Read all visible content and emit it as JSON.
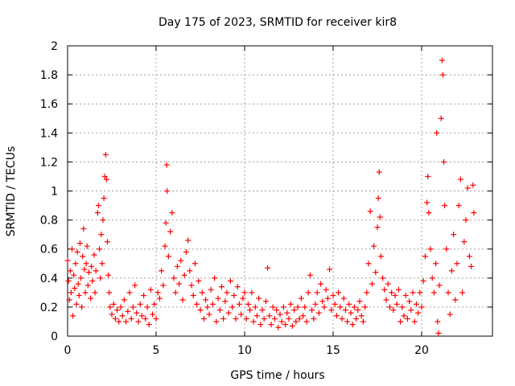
{
  "chart_data": {
    "type": "scatter",
    "title": "Day 175 of 2023, SRMTID for receiver kir8",
    "xlabel": "GPS time / hours",
    "ylabel": "SRMTID / TECUs",
    "xlim": [
      0,
      24
    ],
    "ylim": [
      0,
      2
    ],
    "xticks": [
      0,
      5,
      10,
      15,
      20
    ],
    "xtick_labels": [
      "0",
      "5",
      "10",
      "15",
      "20"
    ],
    "yticks": [
      0,
      0.2,
      0.4,
      0.6,
      0.8,
      1,
      1.2,
      1.4,
      1.6,
      1.8,
      2
    ],
    "ytick_labels": [
      "0",
      "0.2",
      "0.4",
      "0.6",
      "0.8",
      "1",
      "1.2",
      "1.4",
      "1.6",
      "1.8",
      "2"
    ],
    "grid": true,
    "marker": "+",
    "marker_color": "#ff0000",
    "series": [
      {
        "name": "SRMTID",
        "points": [
          [
            0.0,
            0.52
          ],
          [
            0.05,
            0.38
          ],
          [
            0.1,
            0.25
          ],
          [
            0.15,
            0.45
          ],
          [
            0.2,
            0.3
          ],
          [
            0.25,
            0.6
          ],
          [
            0.3,
            0.14
          ],
          [
            0.35,
            0.42
          ],
          [
            0.4,
            0.33
          ],
          [
            0.45,
            0.5
          ],
          [
            0.5,
            0.22
          ],
          [
            0.55,
            0.58
          ],
          [
            0.6,
            0.36
          ],
          [
            0.65,
            0.28
          ],
          [
            0.7,
            0.64
          ],
          [
            0.75,
            0.4
          ],
          [
            0.8,
            0.2
          ],
          [
            0.85,
            0.55
          ],
          [
            0.9,
            0.74
          ],
          [
            0.95,
            0.46
          ],
          [
            1.0,
            0.3
          ],
          [
            1.05,
            0.5
          ],
          [
            1.1,
            0.62
          ],
          [
            1.15,
            0.35
          ],
          [
            1.2,
            0.44
          ],
          [
            1.3,
            0.26
          ],
          [
            1.35,
            0.48
          ],
          [
            1.4,
            0.38
          ],
          [
            1.5,
            0.56
          ],
          [
            1.55,
            0.3
          ],
          [
            1.6,
            0.45
          ],
          [
            1.7,
            0.85
          ],
          [
            1.75,
            0.9
          ],
          [
            1.8,
            0.6
          ],
          [
            1.85,
            0.4
          ],
          [
            1.9,
            0.7
          ],
          [
            1.95,
            0.5
          ],
          [
            2.0,
            0.8
          ],
          [
            2.05,
            0.95
          ],
          [
            2.1,
            1.1
          ],
          [
            2.15,
            1.25
          ],
          [
            2.2,
            1.08
          ],
          [
            2.25,
            0.65
          ],
          [
            2.3,
            0.42
          ],
          [
            2.35,
            0.3
          ],
          [
            2.4,
            0.2
          ],
          [
            2.5,
            0.15
          ],
          [
            2.6,
            0.22
          ],
          [
            2.7,
            0.12
          ],
          [
            2.8,
            0.18
          ],
          [
            2.9,
            0.1
          ],
          [
            3.0,
            0.2
          ],
          [
            3.1,
            0.14
          ],
          [
            3.2,
            0.25
          ],
          [
            3.3,
            0.1
          ],
          [
            3.4,
            0.17
          ],
          [
            3.5,
            0.3
          ],
          [
            3.6,
            0.12
          ],
          [
            3.7,
            0.2
          ],
          [
            3.8,
            0.35
          ],
          [
            3.9,
            0.16
          ],
          [
            4.0,
            0.1
          ],
          [
            4.1,
            0.22
          ],
          [
            4.2,
            0.14
          ],
          [
            4.3,
            0.28
          ],
          [
            4.4,
            0.12
          ],
          [
            4.5,
            0.2
          ],
          [
            4.6,
            0.08
          ],
          [
            4.7,
            0.32
          ],
          [
            4.8,
            0.15
          ],
          [
            4.9,
            0.22
          ],
          [
            5.0,
            0.12
          ],
          [
            5.1,
            0.3
          ],
          [
            5.2,
            0.26
          ],
          [
            5.3,
            0.45
          ],
          [
            5.4,
            0.35
          ],
          [
            5.5,
            0.62
          ],
          [
            5.55,
            0.78
          ],
          [
            5.6,
            1.18
          ],
          [
            5.62,
            1.0
          ],
          [
            5.7,
            0.55
          ],
          [
            5.8,
            0.72
          ],
          [
            5.9,
            0.85
          ],
          [
            6.0,
            0.4
          ],
          [
            6.1,
            0.3
          ],
          [
            6.2,
            0.48
          ],
          [
            6.3,
            0.36
          ],
          [
            6.4,
            0.52
          ],
          [
            6.5,
            0.25
          ],
          [
            6.6,
            0.42
          ],
          [
            6.7,
            0.58
          ],
          [
            6.8,
            0.66
          ],
          [
            6.9,
            0.45
          ],
          [
            7.0,
            0.35
          ],
          [
            7.1,
            0.28
          ],
          [
            7.2,
            0.5
          ],
          [
            7.3,
            0.22
          ],
          [
            7.4,
            0.38
          ],
          [
            7.5,
            0.18
          ],
          [
            7.6,
            0.3
          ],
          [
            7.7,
            0.12
          ],
          [
            7.8,
            0.25
          ],
          [
            7.9,
            0.2
          ],
          [
            8.0,
            0.15
          ],
          [
            8.1,
            0.32
          ],
          [
            8.2,
            0.22
          ],
          [
            8.3,
            0.4
          ],
          [
            8.4,
            0.1
          ],
          [
            8.5,
            0.26
          ],
          [
            8.6,
            0.18
          ],
          [
            8.7,
            0.34
          ],
          [
            8.8,
            0.12
          ],
          [
            8.9,
            0.24
          ],
          [
            9.0,
            0.3
          ],
          [
            9.1,
            0.16
          ],
          [
            9.2,
            0.38
          ],
          [
            9.3,
            0.2
          ],
          [
            9.4,
            0.28
          ],
          [
            9.5,
            0.12
          ],
          [
            9.6,
            0.34
          ],
          [
            9.7,
            0.22
          ],
          [
            9.8,
            0.15
          ],
          [
            9.9,
            0.26
          ],
          [
            10.0,
            0.3
          ],
          [
            10.1,
            0.12
          ],
          [
            10.2,
            0.22
          ],
          [
            10.3,
            0.18
          ],
          [
            10.4,
            0.3
          ],
          [
            10.5,
            0.1
          ],
          [
            10.6,
            0.2
          ],
          [
            10.7,
            0.14
          ],
          [
            10.8,
            0.26
          ],
          [
            10.9,
            0.08
          ],
          [
            11.0,
            0.18
          ],
          [
            11.1,
            0.12
          ],
          [
            11.2,
            0.24
          ],
          [
            11.3,
            0.47
          ],
          [
            11.4,
            0.14
          ],
          [
            11.5,
            0.08
          ],
          [
            11.6,
            0.2
          ],
          [
            11.7,
            0.12
          ],
          [
            11.8,
            0.18
          ],
          [
            11.9,
            0.06
          ],
          [
            12.0,
            0.15
          ],
          [
            12.1,
            0.1
          ],
          [
            12.2,
            0.2
          ],
          [
            12.3,
            0.08
          ],
          [
            12.4,
            0.16
          ],
          [
            12.5,
            0.12
          ],
          [
            12.6,
            0.22
          ],
          [
            12.7,
            0.07
          ],
          [
            12.8,
            0.18
          ],
          [
            12.9,
            0.1
          ],
          [
            13.0,
            0.2
          ],
          [
            13.1,
            0.12
          ],
          [
            13.2,
            0.26
          ],
          [
            13.3,
            0.14
          ],
          [
            13.4,
            0.2
          ],
          [
            13.5,
            0.1
          ],
          [
            13.6,
            0.3
          ],
          [
            13.7,
            0.42
          ],
          [
            13.8,
            0.18
          ],
          [
            13.9,
            0.12
          ],
          [
            14.0,
            0.22
          ],
          [
            14.1,
            0.3
          ],
          [
            14.2,
            0.16
          ],
          [
            14.3,
            0.36
          ],
          [
            14.4,
            0.24
          ],
          [
            14.5,
            0.2
          ],
          [
            14.6,
            0.32
          ],
          [
            14.7,
            0.26
          ],
          [
            14.8,
            0.46
          ],
          [
            14.9,
            0.18
          ],
          [
            15.0,
            0.28
          ],
          [
            15.1,
            0.22
          ],
          [
            15.2,
            0.14
          ],
          [
            15.3,
            0.3
          ],
          [
            15.4,
            0.2
          ],
          [
            15.5,
            0.12
          ],
          [
            15.6,
            0.26
          ],
          [
            15.7,
            0.18
          ],
          [
            15.8,
            0.1
          ],
          [
            15.9,
            0.22
          ],
          [
            16.0,
            0.16
          ],
          [
            16.1,
            0.08
          ],
          [
            16.2,
            0.2
          ],
          [
            16.3,
            0.12
          ],
          [
            16.4,
            0.18
          ],
          [
            16.5,
            0.24
          ],
          [
            16.6,
            0.14
          ],
          [
            16.7,
            0.1
          ],
          [
            16.8,
            0.2
          ],
          [
            16.9,
            0.3
          ],
          [
            17.0,
            0.5
          ],
          [
            17.1,
            0.86
          ],
          [
            17.2,
            0.36
          ],
          [
            17.3,
            0.62
          ],
          [
            17.4,
            0.44
          ],
          [
            17.5,
            0.75
          ],
          [
            17.55,
            0.95
          ],
          [
            17.6,
            1.13
          ],
          [
            17.65,
            0.82
          ],
          [
            17.7,
            0.55
          ],
          [
            17.8,
            0.4
          ],
          [
            17.9,
            0.32
          ],
          [
            18.0,
            0.25
          ],
          [
            18.1,
            0.36
          ],
          [
            18.2,
            0.2
          ],
          [
            18.3,
            0.3
          ],
          [
            18.4,
            0.18
          ],
          [
            18.5,
            0.28
          ],
          [
            18.6,
            0.22
          ],
          [
            18.7,
            0.32
          ],
          [
            18.8,
            0.1
          ],
          [
            18.9,
            0.2
          ],
          [
            19.0,
            0.14
          ],
          [
            19.1,
            0.28
          ],
          [
            19.2,
            0.12
          ],
          [
            19.3,
            0.24
          ],
          [
            19.4,
            0.18
          ],
          [
            19.5,
            0.3
          ],
          [
            19.6,
            0.1
          ],
          [
            19.7,
            0.22
          ],
          [
            19.8,
            0.16
          ],
          [
            19.9,
            0.3
          ],
          [
            20.0,
            0.2
          ],
          [
            20.1,
            0.38
          ],
          [
            20.2,
            0.55
          ],
          [
            20.3,
            0.92
          ],
          [
            20.35,
            1.1
          ],
          [
            20.4,
            0.85
          ],
          [
            20.5,
            0.6
          ],
          [
            20.6,
            0.4
          ],
          [
            20.7,
            0.3
          ],
          [
            20.8,
            0.5
          ],
          [
            20.85,
            1.4
          ],
          [
            20.9,
            0.1
          ],
          [
            20.95,
            0.02
          ],
          [
            21.0,
            0.35
          ],
          [
            21.1,
            1.5
          ],
          [
            21.15,
            1.9
          ],
          [
            21.2,
            1.8
          ],
          [
            21.25,
            1.2
          ],
          [
            21.3,
            0.9
          ],
          [
            21.4,
            0.6
          ],
          [
            21.5,
            0.3
          ],
          [
            21.6,
            0.15
          ],
          [
            21.7,
            0.45
          ],
          [
            21.8,
            0.7
          ],
          [
            21.9,
            0.25
          ],
          [
            22.0,
            0.5
          ],
          [
            22.1,
            0.9
          ],
          [
            22.2,
            1.08
          ],
          [
            22.3,
            0.3
          ],
          [
            22.4,
            0.65
          ],
          [
            22.5,
            0.8
          ],
          [
            22.6,
            1.02
          ],
          [
            22.7,
            0.55
          ],
          [
            22.8,
            0.48
          ],
          [
            22.9,
            1.04
          ],
          [
            22.95,
            0.85
          ]
        ]
      }
    ]
  }
}
